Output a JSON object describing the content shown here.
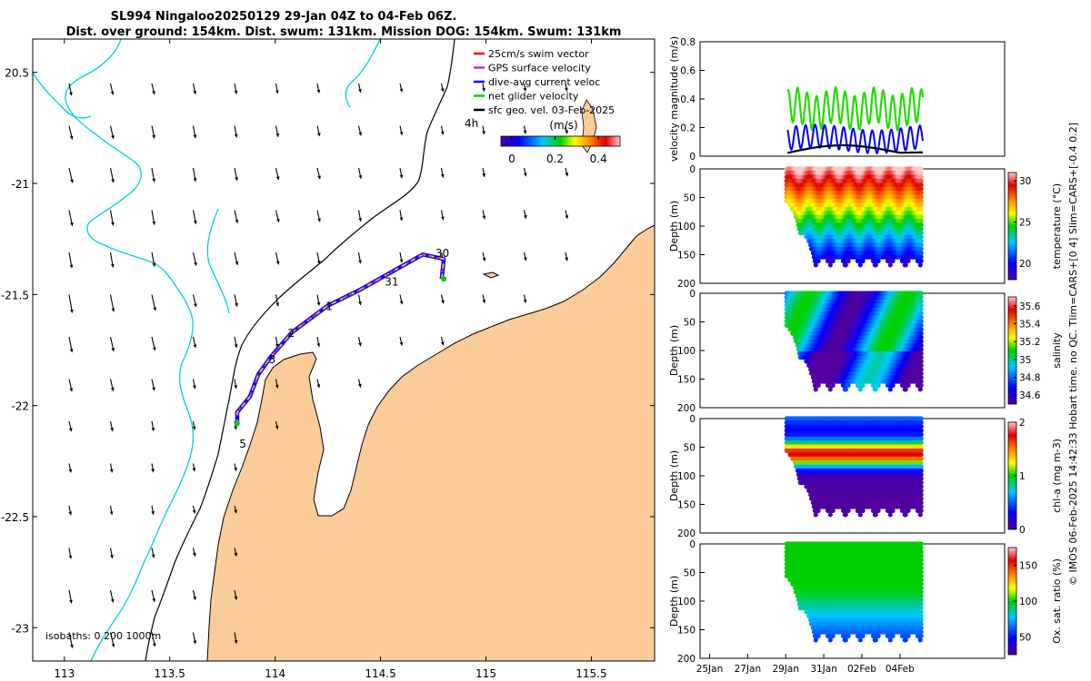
{
  "title": {
    "line1": "SL994 Ningaloo20250129 29-Jan 04Z to 04-Feb 06Z.",
    "line2": "Dist. over ground: 154km. Dist. swum: 131km. Mission DOG: 154km. Swum: 131km"
  },
  "map": {
    "lon_ticks": [
      "113",
      "113.5",
      "114",
      "114.5",
      "115",
      "115.5"
    ],
    "lat_ticks": [
      "20.5",
      "-21",
      "-21.5",
      "-22",
      "-22.5",
      "-23"
    ],
    "lon_range": [
      112.85,
      115.8
    ],
    "lat_range": [
      -23.15,
      -20.35
    ],
    "legend": [
      {
        "label": "25cm/s swim vector",
        "color": "#ff0000"
      },
      {
        "label": "GPS surface velocity",
        "color": "#9b30ff"
      },
      {
        "label": "dive-avg current veloc",
        "color": "#0000ff"
      },
      {
        "label": "net glider velocity",
        "color": "#00cc00"
      },
      {
        "label": "sfc geo. vel. 03-Feb-2025",
        "color": "#000000"
      }
    ],
    "colorbar_label": "(m/s)",
    "colorbar_ticks": [
      "0",
      "0.2",
      "0.4"
    ],
    "colorbar_range": [
      -0.05,
      0.5
    ],
    "label_4h": "4h",
    "day_labels": [
      {
        "text": "30",
        "lon": 114.76,
        "lat": -21.33
      },
      {
        "text": "31",
        "lon": 114.52,
        "lat": -21.46
      },
      {
        "text": "1",
        "lon": 114.24,
        "lat": -21.57
      },
      {
        "text": "2",
        "lon": 114.06,
        "lat": -21.69
      },
      {
        "text": "3",
        "lon": 113.97,
        "lat": -21.81
      },
      {
        "text": "5",
        "lon": 113.83,
        "lat": -22.19
      }
    ],
    "isobaths_label": "isobaths: 0   200  1000m",
    "colors": {
      "land": "#f9cc9a",
      "isobath_1000": "#00d2d2",
      "isobath_200": "#000000"
    }
  },
  "side_panels": {
    "velocity": {
      "ylabel": "velocity magnitude (m/s)",
      "yticks": [
        "0",
        "0.2",
        "0.4",
        "0.6",
        "0.8"
      ],
      "ylim": [
        0,
        0.8
      ]
    },
    "temperature": {
      "ylabel": "Depth (m)",
      "cbar_label": "temperature (°C)",
      "cbar_ticks": [
        "20",
        "25",
        "30"
      ],
      "cbar_range": [
        18,
        31
      ]
    },
    "salinity": {
      "ylabel": "Depth (m)",
      "cbar_label": "salinity",
      "cbar_ticks": [
        "34.6",
        "34.8",
        "35",
        "35.2",
        "35.4",
        "35.6"
      ],
      "cbar_range": [
        34.5,
        35.7
      ]
    },
    "chla": {
      "ylabel": "Depth (m)",
      "cbar_label": "chl-a (mg m-3)",
      "cbar_ticks": [
        "0",
        "1",
        "2"
      ],
      "cbar_range": [
        0,
        2
      ]
    },
    "oxygen": {
      "ylabel": "Depth (m)",
      "cbar_label": "Ox. sat. ratio (%)",
      "cbar_ticks": [
        "50",
        "100",
        "150"
      ],
      "cbar_range": [
        25,
        175
      ]
    },
    "depth_ticks": [
      "0",
      "50",
      "100",
      "150",
      "200"
    ],
    "time_ticks": [
      "25Jan",
      "27Jan",
      "29Jan",
      "31Jan",
      "02Feb",
      "04Feb"
    ]
  },
  "footer": "© IMOS 06-Feb-2025 14:42:33 Hobart time. no QC. Tlim=CARS+[0 4] Slim=CARS+[-0.4 0.2]"
}
